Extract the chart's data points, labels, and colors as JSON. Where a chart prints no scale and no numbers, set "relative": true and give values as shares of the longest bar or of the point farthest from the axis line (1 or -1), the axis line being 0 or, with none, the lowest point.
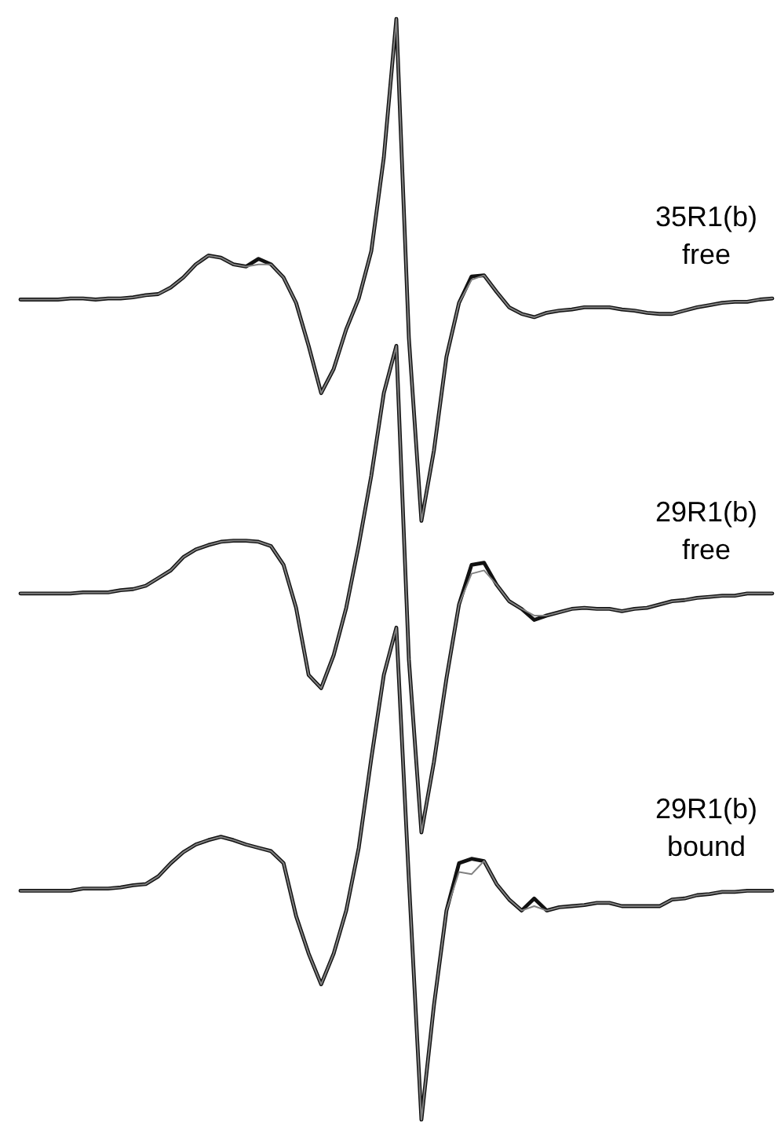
{
  "chart_data": {
    "type": "line",
    "relative": true,
    "marker": "none",
    "line_style": "solid",
    "categories": [
      null,
      null,
      null,
      null,
      null,
      null,
      null,
      null,
      null,
      null,
      null,
      null,
      null,
      null,
      null,
      null,
      null,
      null,
      null,
      null,
      null,
      null,
      null,
      null,
      null,
      null,
      null,
      null,
      null,
      null,
      null,
      null,
      null,
      null,
      null,
      null,
      null,
      null,
      null,
      null,
      null,
      null,
      null,
      null,
      null,
      null,
      null,
      null,
      null,
      null,
      null,
      null,
      null,
      null,
      null,
      null,
      null,
      null,
      null,
      null,
      null
    ],
    "annotations": [
      "35R1(b)\nfree",
      "29R1(b)\nfree",
      "29R1(b)\nbound"
    ],
    "series": [
      {
        "color": "#111111",
        "values": [
          0.745,
          0.745,
          0.745,
          0.745,
          0.746,
          0.746,
          0.745,
          0.746,
          0.746,
          0.747,
          0.749,
          0.75,
          0.756,
          0.765,
          0.777,
          0.785,
          0.783,
          0.777,
          0.775,
          0.782,
          0.777,
          0.765,
          0.742,
          0.703,
          0.66,
          0.682,
          0.718,
          0.746,
          0.789,
          0.874,
          1,
          0.71,
          0.544,
          0.608,
          0.693,
          0.742,
          0.766,
          0.767,
          0.752,
          0.738,
          0.732,
          0.729,
          0.733,
          0.735,
          0.736,
          0.738,
          0.738,
          0.738,
          0.736,
          0.735,
          0.733,
          0.732,
          0.732,
          0.735,
          0.738,
          0.74,
          0.742,
          0.743,
          0.743,
          0.745,
          0.746
        ]
      },
      {
        "color": "#808080",
        "values": [
          0.745,
          0.745,
          0.745,
          0.745,
          0.746,
          0.746,
          0.745,
          0.746,
          0.746,
          0.747,
          0.749,
          0.75,
          0.756,
          0.765,
          0.777,
          0.785,
          0.783,
          0.777,
          0.775,
          0.777,
          0.777,
          0.765,
          0.742,
          0.703,
          0.66,
          0.682,
          0.718,
          0.746,
          0.789,
          0.874,
          1,
          0.71,
          0.544,
          0.608,
          0.693,
          0.742,
          0.763,
          0.767,
          0.752,
          0.738,
          0.732,
          0.729,
          0.733,
          0.735,
          0.736,
          0.738,
          0.738,
          0.738,
          0.736,
          0.735,
          0.733,
          0.732,
          0.732,
          0.735,
          0.738,
          0.74,
          0.742,
          0.743,
          0.743,
          0.745,
          0.746
        ]
      },
      {
        "color": "#111111",
        "values": [
          0.478,
          0.478,
          0.478,
          0.478,
          0.478,
          0.479,
          0.479,
          0.479,
          0.481,
          0.482,
          0.485,
          0.492,
          0.499,
          0.511,
          0.518,
          0.522,
          0.525,
          0.526,
          0.526,
          0.525,
          0.521,
          0.504,
          0.465,
          0.404,
          0.392,
          0.422,
          0.465,
          0.522,
          0.585,
          0.66,
          0.703,
          0.418,
          0.261,
          0.325,
          0.401,
          0.468,
          0.504,
          0.506,
          0.486,
          0.471,
          0.464,
          0.454,
          0.458,
          0.461,
          0.464,
          0.465,
          0.464,
          0.464,
          0.462,
          0.464,
          0.465,
          0.468,
          0.471,
          0.472,
          0.474,
          0.475,
          0.476,
          0.476,
          0.478,
          0.478,
          0.478
        ]
      },
      {
        "color": "#808080",
        "values": [
          0.478,
          0.478,
          0.478,
          0.478,
          0.478,
          0.479,
          0.479,
          0.479,
          0.481,
          0.482,
          0.485,
          0.492,
          0.499,
          0.511,
          0.518,
          0.522,
          0.525,
          0.526,
          0.526,
          0.525,
          0.521,
          0.504,
          0.465,
          0.404,
          0.392,
          0.422,
          0.465,
          0.522,
          0.585,
          0.66,
          0.703,
          0.418,
          0.261,
          0.325,
          0.401,
          0.468,
          0.496,
          0.499,
          0.486,
          0.471,
          0.464,
          0.458,
          0.458,
          0.461,
          0.464,
          0.465,
          0.464,
          0.464,
          0.462,
          0.464,
          0.465,
          0.468,
          0.471,
          0.472,
          0.474,
          0.475,
          0.476,
          0.476,
          0.478,
          0.478,
          0.478
        ]
      },
      {
        "color": "#111111",
        "values": [
          0.208,
          0.208,
          0.208,
          0.208,
          0.208,
          0.21,
          0.21,
          0.21,
          0.211,
          0.213,
          0.214,
          0.221,
          0.233,
          0.243,
          0.25,
          0.254,
          0.257,
          0.254,
          0.25,
          0.247,
          0.244,
          0.233,
          0.185,
          0.151,
          0.123,
          0.151,
          0.19,
          0.247,
          0.328,
          0.404,
          0.447,
          0.218,
          0,
          0.104,
          0.19,
          0.233,
          0.237,
          0.235,
          0.214,
          0.2,
          0.19,
          0.201,
          0.19,
          0.193,
          0.194,
          0.195,
          0.197,
          0.197,
          0.194,
          0.194,
          0.194,
          0.194,
          0.2,
          0.201,
          0.204,
          0.205,
          0.207,
          0.207,
          0.208,
          0.208,
          0.208
        ]
      },
      {
        "color": "#808080",
        "values": [
          0.208,
          0.208,
          0.208,
          0.208,
          0.208,
          0.21,
          0.21,
          0.21,
          0.211,
          0.213,
          0.214,
          0.221,
          0.233,
          0.243,
          0.25,
          0.254,
          0.257,
          0.254,
          0.25,
          0.247,
          0.244,
          0.233,
          0.185,
          0.151,
          0.123,
          0.151,
          0.19,
          0.247,
          0.328,
          0.404,
          0.447,
          0.218,
          0,
          0.104,
          0.19,
          0.225,
          0.223,
          0.235,
          0.214,
          0.2,
          0.19,
          0.194,
          0.19,
          0.193,
          0.194,
          0.195,
          0.197,
          0.197,
          0.194,
          0.194,
          0.194,
          0.194,
          0.2,
          0.201,
          0.204,
          0.205,
          0.207,
          0.207,
          0.208,
          0.208,
          0.208
        ]
      }
    ]
  }
}
